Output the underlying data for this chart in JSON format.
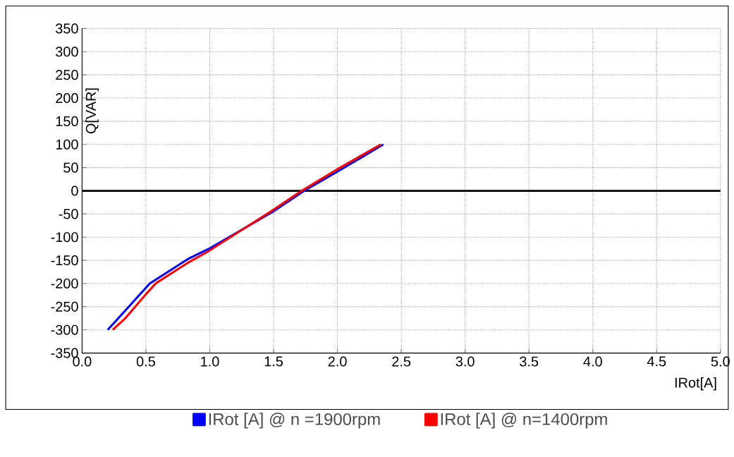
{
  "chart_data": {
    "type": "line",
    "xlabel": "IRot[A]",
    "ylabel": "Q[VAR]",
    "xlim": [
      0,
      5
    ],
    "ylim": [
      -350,
      350
    ],
    "xticks": [
      {
        "value": 0,
        "label": "0.0"
      },
      {
        "value": 0.5,
        "label": "0.5"
      },
      {
        "value": 1,
        "label": "1.0"
      },
      {
        "value": 1.5,
        "label": "1.5"
      },
      {
        "value": 2,
        "label": "2.0"
      },
      {
        "value": 2.5,
        "label": "2.5"
      },
      {
        "value": 3,
        "label": "3.0"
      },
      {
        "value": 3.5,
        "label": "3.5"
      },
      {
        "value": 4,
        "label": "4.0"
      },
      {
        "value": 4.5,
        "label": "4.5"
      },
      {
        "value": 5,
        "label": "5.0"
      }
    ],
    "yticks": [
      -350,
      -300,
      -250,
      -200,
      -150,
      -100,
      -50,
      0,
      50,
      100,
      150,
      200,
      250,
      300,
      350
    ],
    "grid": true,
    "legend": "bottom",
    "marker": "none",
    "line_style": "solid",
    "ref_lines": [
      {
        "axis": "y",
        "value": 0,
        "color": "#000000"
      }
    ],
    "series": [
      {
        "name": "IRot [A] @ n =1900rpm",
        "color": "#0000ff",
        "x": [
          0.2,
          0.28,
          0.445,
          0.53,
          0.83,
          1.0,
          1.49,
          1.74,
          2.01,
          2.36
        ],
        "values": [
          -300,
          -276,
          -226,
          -200,
          -147,
          -124,
          -46,
          0,
          43,
          100
        ]
      },
      {
        "name": "IRot [A] @ n=1400rpm",
        "color": "#ff0000",
        "x": [
          0.24,
          0.335,
          0.5,
          0.58,
          0.83,
          0.98,
          1.47,
          1.72,
          1.99,
          2.34
        ],
        "values": [
          -300,
          -276,
          -223,
          -199,
          -155,
          -132,
          -46,
          0,
          45,
          100
        ]
      }
    ]
  }
}
